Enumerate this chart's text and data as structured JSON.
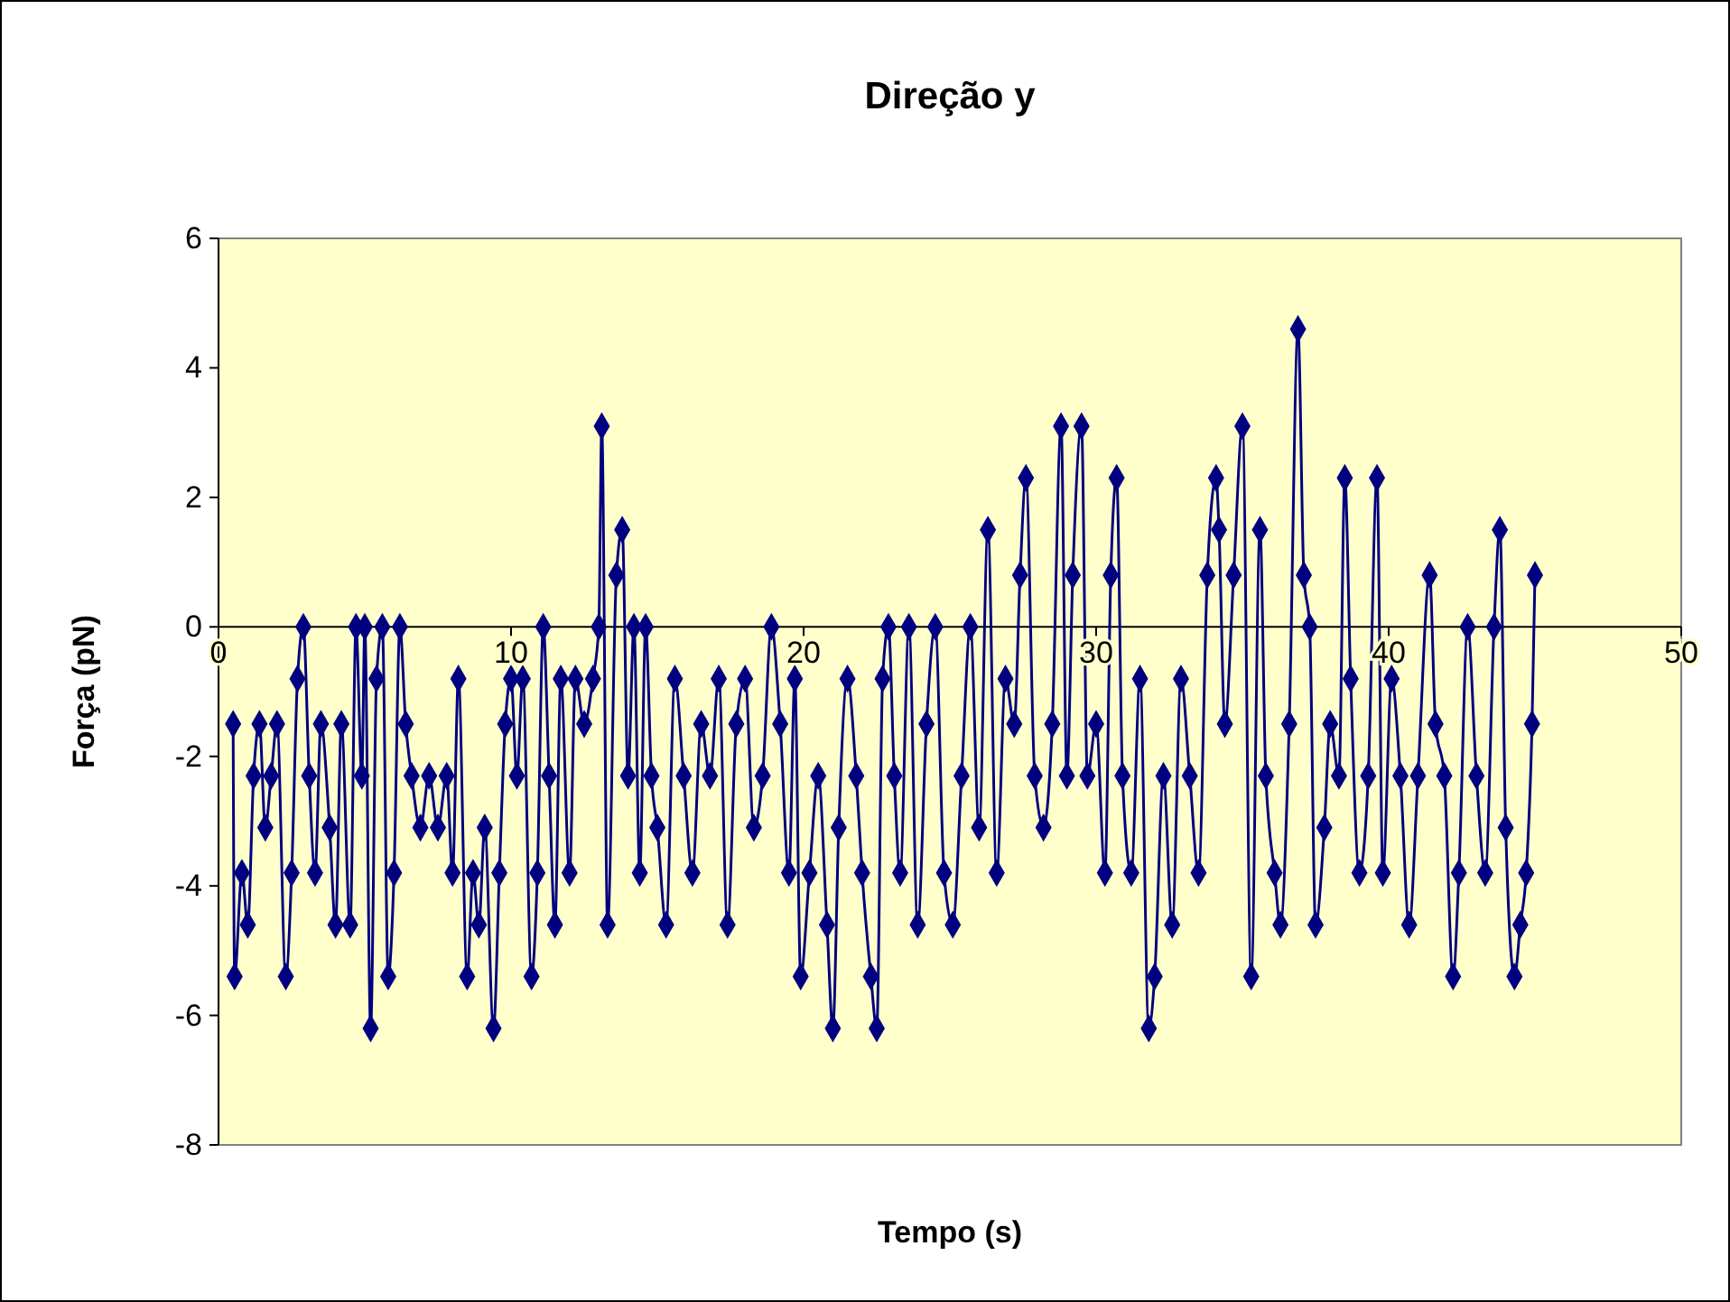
{
  "chart_data": {
    "type": "line",
    "title": "Direção y",
    "xlabel": "Tempo (s)",
    "ylabel": "Força (pN)",
    "marker": "diamond",
    "grid": false,
    "xlim": [
      0,
      50
    ],
    "xticks": [
      0,
      10,
      20,
      30,
      40,
      50
    ],
    "ylim": [
      -8,
      6
    ],
    "yticks": [
      -8,
      -6,
      -4,
      -2,
      0,
      2,
      4,
      6
    ],
    "series": [
      {
        "color": "#000080",
        "x": [
          0.5,
          0.55,
          0.8,
          1.0,
          1.2,
          1.4,
          1.6,
          1.8,
          2.0,
          2.3,
          2.5,
          2.7,
          2.9,
          3.1,
          3.3,
          3.5,
          3.8,
          4.0,
          4.2,
          4.5,
          4.7,
          4.9,
          5.0,
          5.2,
          5.4,
          5.6,
          5.8,
          6.0,
          6.2,
          6.4,
          6.6,
          6.9,
          7.2,
          7.5,
          7.8,
          8.0,
          8.2,
          8.5,
          8.7,
          8.9,
          9.1,
          9.4,
          9.6,
          9.8,
          10.0,
          10.2,
          10.4,
          10.7,
          10.9,
          11.1,
          11.3,
          11.5,
          11.7,
          12.0,
          12.2,
          12.5,
          12.8,
          13.0,
          13.1,
          13.3,
          13.6,
          13.8,
          14.0,
          14.2,
          14.4,
          14.6,
          14.8,
          15.0,
          15.3,
          15.6,
          15.9,
          16.2,
          16.5,
          16.8,
          17.1,
          17.4,
          17.7,
          18.0,
          18.3,
          18.6,
          18.9,
          19.2,
          19.5,
          19.7,
          19.9,
          20.2,
          20.5,
          20.8,
          21.0,
          21.2,
          21.5,
          21.8,
          22.0,
          22.3,
          22.5,
          22.7,
          22.9,
          23.1,
          23.3,
          23.6,
          23.9,
          24.2,
          24.5,
          24.8,
          25.1,
          25.4,
          25.7,
          26.0,
          26.3,
          26.6,
          26.9,
          27.2,
          27.4,
          27.6,
          27.9,
          28.2,
          28.5,
          28.8,
          29.0,
          29.2,
          29.5,
          29.7,
          30.0,
          30.3,
          30.5,
          30.7,
          30.9,
          31.2,
          31.5,
          31.8,
          32.0,
          32.3,
          32.6,
          32.9,
          33.2,
          33.5,
          33.8,
          34.1,
          34.2,
          34.4,
          34.7,
          35.0,
          35.3,
          35.6,
          35.8,
          36.1,
          36.3,
          36.6,
          36.9,
          37.1,
          37.3,
          37.5,
          37.8,
          38.0,
          38.3,
          38.5,
          38.7,
          39.0,
          39.3,
          39.6,
          39.8,
          40.1,
          40.4,
          40.7,
          41.0,
          41.4,
          41.6,
          41.9,
          42.2,
          42.4,
          42.7,
          43.0,
          43.3,
          43.6,
          43.8,
          44.0,
          44.3,
          44.5,
          44.7,
          44.9,
          45.0
        ],
        "values": [
          -1.5,
          -5.4,
          -3.8,
          -4.6,
          -2.3,
          -1.5,
          -3.1,
          -2.3,
          -1.5,
          -5.4,
          -3.8,
          -0.8,
          0,
          -2.3,
          -3.8,
          -1.5,
          -3.1,
          -4.6,
          -1.5,
          -4.6,
          0,
          -2.3,
          0,
          -6.2,
          -0.8,
          0,
          -5.4,
          -3.8,
          0,
          -1.5,
          -2.3,
          -3.1,
          -2.3,
          -3.1,
          -2.3,
          -3.8,
          -0.8,
          -5.4,
          -3.8,
          -4.6,
          -3.1,
          -6.2,
          -3.8,
          -1.5,
          -0.8,
          -2.3,
          -0.8,
          -5.4,
          -3.8,
          0,
          -2.3,
          -4.6,
          -0.8,
          -3.8,
          -0.8,
          -1.5,
          -0.8,
          0,
          3.1,
          -4.6,
          0.8,
          1.5,
          -2.3,
          0,
          -3.8,
          0,
          -2.3,
          -3.1,
          -4.6,
          -0.8,
          -2.3,
          -3.8,
          -1.5,
          -2.3,
          -0.8,
          -4.6,
          -1.5,
          -0.8,
          -3.1,
          -2.3,
          0,
          -1.5,
          -3.8,
          -0.8,
          -5.4,
          -3.8,
          -2.3,
          -4.6,
          -6.2,
          -3.1,
          -0.8,
          -2.3,
          -3.8,
          -5.4,
          -6.2,
          -0.8,
          0,
          -2.3,
          -3.8,
          0,
          -4.6,
          -1.5,
          0,
          -3.8,
          -4.6,
          -2.3,
          0,
          -3.1,
          1.5,
          -3.8,
          -0.8,
          -1.5,
          0.8,
          2.3,
          -2.3,
          -3.1,
          -1.5,
          3.1,
          -2.3,
          0.8,
          3.1,
          -2.3,
          -1.5,
          -3.8,
          0.8,
          2.3,
          -2.3,
          -3.8,
          -0.8,
          -6.2,
          -5.4,
          -2.3,
          -4.6,
          -0.8,
          -2.3,
          -3.8,
          0.8,
          2.3,
          1.5,
          -1.5,
          0.8,
          3.1,
          -5.4,
          1.5,
          -2.3,
          -3.8,
          -4.6,
          -1.5,
          4.6,
          0.8,
          0,
          -4.6,
          -3.1,
          -1.5,
          -2.3,
          2.3,
          -0.8,
          -3.8,
          -2.3,
          2.3,
          -3.8,
          -0.8,
          -2.3,
          -4.6,
          -2.3,
          0.8,
          -1.5,
          -2.3,
          -5.4,
          -3.8,
          0,
          -2.3,
          -3.8,
          0,
          1.5,
          -3.1,
          -5.4,
          -4.6,
          -3.8,
          -1.5,
          0.8
        ]
      }
    ]
  }
}
